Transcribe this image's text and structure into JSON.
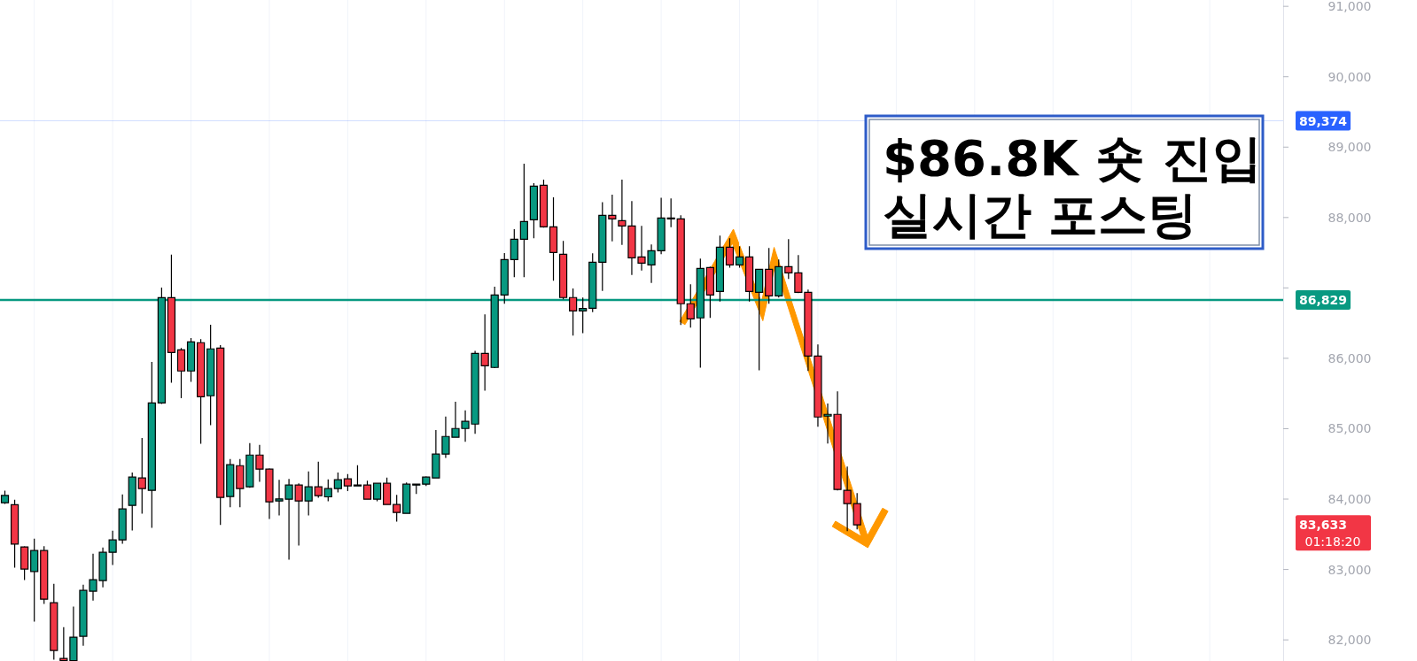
{
  "chart_data": {
    "type": "candlestick",
    "title": "$86.8K 숏 진입",
    "subtitle": "실시간 포스팅",
    "categories": [
      null,
      null,
      null,
      null,
      null,
      null,
      null,
      null,
      null,
      null,
      null,
      null,
      null,
      null,
      null,
      null,
      null,
      null,
      null,
      null,
      null,
      null,
      null,
      null,
      null,
      null,
      null,
      null,
      null,
      null,
      null,
      null,
      null,
      null,
      null,
      null,
      null,
      null,
      null,
      null,
      null,
      null,
      null,
      null,
      null,
      null,
      null,
      null,
      null,
      null,
      null,
      null,
      null,
      null,
      null,
      null,
      null,
      null,
      null,
      null,
      null,
      null,
      null,
      null,
      null,
      null,
      null,
      null,
      null,
      null,
      null,
      null,
      null,
      null,
      null,
      null,
      null,
      null,
      null,
      null,
      null,
      null,
      null,
      null,
      null,
      null,
      null,
      null,
      null,
      null,
      null,
      null,
      null,
      null,
      null,
      null,
      null,
      null,
      null,
      null,
      null,
      null,
      null,
      null,
      null,
      null,
      null,
      null,
      null,
      null,
      null,
      null,
      null,
      null,
      null,
      null,
      null,
      null,
      null,
      null,
      null,
      null,
      null,
      null,
      null,
      null,
      null,
      null,
      null,
      null,
      null
    ],
    "ohlc": [
      [
        83948,
        84120,
        83930,
        84052
      ],
      [
        83919,
        83990,
        83026,
        83362
      ],
      [
        83320,
        83330,
        82851,
        83006
      ],
      [
        82972,
        83437,
        82260,
        83269
      ],
      [
        83269,
        83332,
        82511,
        82578
      ],
      [
        82528,
        82796,
        81720,
        81850
      ],
      [
        81737,
        82181,
        81705,
        81705
      ],
      [
        81705,
        82474,
        81705,
        82038
      ],
      [
        82051,
        82784,
        81917,
        82704
      ],
      [
        82692,
        83223,
        82557,
        82855
      ],
      [
        82843,
        83311,
        82746,
        83244
      ],
      [
        83244,
        83550,
        83064,
        83420
      ],
      [
        83420,
        84065,
        83366,
        83860
      ],
      [
        83910,
        84379,
        83554,
        84312
      ],
      [
        84300,
        84869,
        83793,
        84149
      ],
      [
        84124,
        85950,
        83592,
        85367
      ],
      [
        85367,
        87005,
        85351,
        86862
      ],
      [
        86862,
        87474,
        85652,
        86083
      ],
      [
        86121,
        86146,
        85434,
        85820
      ],
      [
        85820,
        86289,
        85665,
        86234
      ],
      [
        86222,
        86272,
        84785,
        85455
      ],
      [
        85468,
        86477,
        85049,
        86134
      ],
      [
        86146,
        86188,
        83634,
        84023
      ],
      [
        84036,
        84568,
        83885,
        84488
      ],
      [
        84475,
        84568,
        83885,
        84149
      ],
      [
        84174,
        84794,
        84162,
        84626
      ],
      [
        84626,
        84769,
        84245,
        84425
      ],
      [
        84425,
        84438,
        83717,
        83960
      ],
      [
        83973,
        84275,
        83768,
        84002
      ],
      [
        83998,
        84287,
        83140,
        84199
      ],
      [
        84199,
        84224,
        83341,
        83973
      ],
      [
        83973,
        84392,
        83768,
        84174
      ],
      [
        84174,
        84530,
        84019,
        84048
      ],
      [
        84032,
        84279,
        83969,
        84149
      ],
      [
        84149,
        84379,
        84094,
        84275
      ],
      [
        84287,
        84354,
        84115,
        84187
      ],
      [
        84199,
        84480,
        84190,
        84199
      ],
      [
        84199,
        84262,
        83998,
        83998
      ],
      [
        83998,
        84230,
        83969,
        84224
      ],
      [
        84224,
        84304,
        83920,
        83923
      ],
      [
        83923,
        84061,
        83680,
        83810
      ],
      [
        83797,
        84237,
        83797,
        84212
      ],
      [
        84212,
        84215,
        84073,
        84212
      ],
      [
        84212,
        84325,
        84187,
        84312
      ],
      [
        84300,
        84982,
        84300,
        84639
      ],
      [
        84639,
        85171,
        84584,
        84890
      ],
      [
        84878,
        85384,
        84870,
        85003
      ],
      [
        85003,
        85259,
        84815,
        85104
      ],
      [
        85066,
        86105,
        84928,
        86071
      ],
      [
        86071,
        86624,
        85539,
        85895
      ],
      [
        85870,
        87018,
        85860,
        86900
      ],
      [
        86900,
        87495,
        86775,
        87403
      ],
      [
        87403,
        87834,
        87151,
        87692
      ],
      [
        87692,
        88764,
        87151,
        87943
      ],
      [
        87968,
        88487,
        87704,
        88446
      ],
      [
        88458,
        88538,
        87855,
        87868
      ],
      [
        87868,
        88286,
        87101,
        87503
      ],
      [
        87478,
        87667,
        86837,
        86863
      ],
      [
        86863,
        86992,
        86322,
        86674
      ],
      [
        86674,
        86863,
        86356,
        86707
      ],
      [
        86712,
        87491,
        86657,
        87365
      ],
      [
        87365,
        88219,
        86959,
        88031
      ],
      [
        88031,
        88324,
        87662,
        87981
      ],
      [
        87956,
        88538,
        87612,
        87880
      ],
      [
        87880,
        88232,
        87185,
        87428
      ],
      [
        87440,
        87880,
        87248,
        87353
      ],
      [
        87327,
        87616,
        87072,
        87528
      ],
      [
        87528,
        88282,
        87478,
        87993
      ],
      [
        87993,
        88270,
        87863,
        87993
      ],
      [
        87981,
        88031,
        86473,
        86775
      ],
      [
        86775,
        87051,
        86435,
        86561
      ],
      [
        86574,
        87415,
        85866,
        87277
      ],
      [
        87290,
        87302,
        86574,
        86900
      ],
      [
        86950,
        87742,
        86808,
        87579
      ],
      [
        87579,
        87704,
        87286,
        87327
      ],
      [
        87327,
        87591,
        87286,
        87440
      ],
      [
        87440,
        87591,
        86808,
        86950
      ],
      [
        86938,
        87273,
        85828,
        87265
      ],
      [
        87265,
        87566,
        86775,
        86888
      ],
      [
        86888,
        87403,
        86863,
        87302
      ],
      [
        87302,
        87692,
        87126,
        87214
      ],
      [
        87214,
        87466,
        86925,
        86938
      ],
      [
        86938,
        86976,
        85820,
        86033
      ],
      [
        86033,
        86197,
        85028,
        85166
      ],
      [
        85179,
        85359,
        84790,
        85204
      ],
      [
        85204,
        85531,
        84124,
        84136
      ],
      [
        84124,
        84463,
        83546,
        83935
      ],
      [
        83935,
        84086,
        83571,
        83633
      ],
      null,
      null,
      null,
      null,
      null,
      null,
      null,
      null,
      null,
      null,
      null,
      null,
      null,
      null,
      null,
      null,
      null,
      null,
      null,
      null,
      null,
      null,
      null,
      null,
      null,
      null,
      null,
      null,
      null,
      null,
      null,
      null,
      null,
      null,
      null,
      null,
      null,
      null,
      null,
      null,
      null,
      null,
      null
    ],
    "colors": [
      "#089981",
      "#f23645",
      "#f23645",
      "#089981",
      "#f23645",
      "#f23645",
      "#f23645",
      "#089981",
      "#089981",
      "#089981",
      "#089981",
      "#089981",
      "#089981",
      "#089981",
      "#f23645",
      "#089981",
      "#089981",
      "#f23645",
      "#f23645",
      "#089981",
      "#f23645",
      "#089981",
      "#f23645",
      "#089981",
      "#f23645",
      "#089981",
      "#f23645",
      "#f23645",
      "#089981",
      "#089981",
      "#f23645",
      "#089981",
      "#f23645",
      "#089981",
      "#089981",
      "#f23645",
      "#089981",
      "#f23645",
      "#089981",
      "#f23645",
      "#f23645",
      "#089981",
      "#089981",
      "#089981",
      "#089981",
      "#089981",
      "#089981",
      "#089981",
      "#089981",
      "#f23645",
      "#089981",
      "#089981",
      "#089981",
      "#089981",
      "#089981",
      "#f23645",
      "#f23645",
      "#f23645",
      "#f23645",
      "#089981",
      "#089981",
      "#089981",
      "#f23645",
      "#f23645",
      "#f23645",
      "#f23645",
      "#089981",
      "#089981",
      "#089981",
      "#f23645",
      "#f23645",
      "#089981",
      "#f23645",
      "#089981",
      "#f23645",
      "#089981",
      "#f23645",
      "#089981",
      "#f23645",
      "#089981",
      "#f23645",
      "#f23645",
      "#f23645",
      "#f23645",
      "#089981",
      "#f23645",
      "#f23645",
      "#f23645",
      null,
      null,
      null,
      null,
      null,
      null,
      null,
      null,
      null,
      null,
      null,
      null,
      null,
      null,
      null,
      null,
      null,
      null,
      null,
      null,
      null,
      null,
      null,
      null,
      null,
      null,
      null,
      null,
      null,
      null,
      null,
      null,
      null,
      null,
      null,
      null,
      null,
      null,
      null,
      null,
      null,
      null,
      null
    ],
    "ylim": [
      81700,
      91090
    ],
    "yticks": [
      {
        "value": 82000,
        "label": "82,000"
      },
      {
        "value": 83000,
        "label": "83,000"
      },
      {
        "value": 84000,
        "label": "84,000"
      },
      {
        "value": 85000,
        "label": "85,000"
      },
      {
        "value": 86000,
        "label": "86,000"
      },
      {
        "value": 87000,
        "label": null
      },
      {
        "value": 88000,
        "label": "88,000"
      },
      {
        "value": 89000,
        "label": "89,000"
      },
      {
        "value": 90000,
        "label": "90,000"
      },
      {
        "value": 91000,
        "label": "91,000"
      }
    ],
    "ref_lines": [
      {
        "axis": "y",
        "value": 86829,
        "label": "86,829",
        "color": "#089981"
      },
      {
        "axis": "y",
        "value": 89374,
        "label": "89,374",
        "color": "#2962ff"
      }
    ],
    "annotations": [
      "83,633",
      "01:18:20"
    ],
    "grid": "x"
  }
}
